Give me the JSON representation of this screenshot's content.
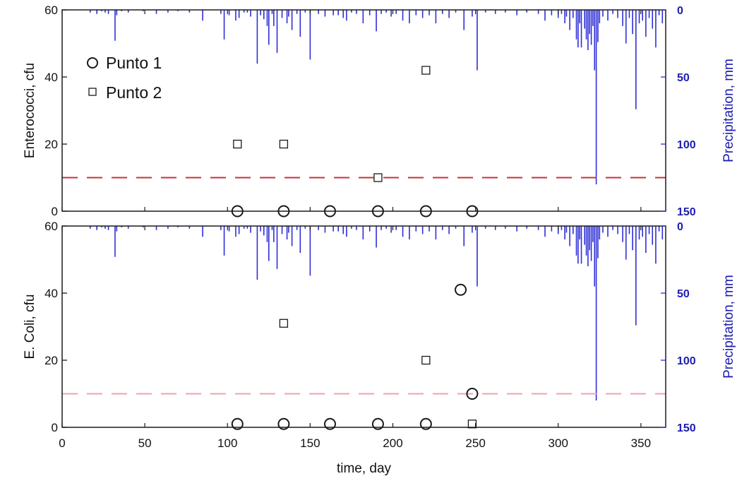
{
  "chart_data": [
    {
      "type": "scatter",
      "ylabel": "Enterococci, cfu",
      "y2label": "Precipitation, mm",
      "xlim": [
        0,
        365
      ],
      "ylim": [
        0,
        60
      ],
      "y2lim": [
        0,
        150
      ],
      "y2_inverted": true,
      "yticks": [
        0,
        20,
        40,
        60
      ],
      "y2ticks": [
        0,
        50,
        100,
        150
      ],
      "threshold": 10,
      "legend_position": "top-left",
      "series": [
        {
          "name": "Punto 1",
          "marker": "circle",
          "x": [
            106,
            134,
            162,
            191,
            220,
            248
          ],
          "y": [
            0,
            0,
            0,
            0,
            0,
            0
          ]
        },
        {
          "name": "Punto 2",
          "marker": "square",
          "x": [
            106,
            134,
            191,
            220
          ],
          "y": [
            20,
            20,
            10,
            42
          ]
        }
      ]
    },
    {
      "type": "scatter",
      "ylabel": "E. Coli, cfu",
      "y2label": "Precipitation, mm",
      "xlabel": "time, day",
      "xlim": [
        0,
        365
      ],
      "ylim": [
        0,
        60
      ],
      "y2lim": [
        0,
        150
      ],
      "y2_inverted": true,
      "xticks": [
        0,
        50,
        100,
        150,
        200,
        250,
        300,
        350
      ],
      "yticks": [
        0,
        20,
        40,
        60
      ],
      "y2ticks": [
        0,
        50,
        100,
        150
      ],
      "threshold": 10,
      "series": [
        {
          "name": "Punto 1",
          "marker": "circle",
          "x": [
            106,
            134,
            162,
            191,
            220,
            241,
            248
          ],
          "y": [
            1,
            1,
            1,
            1,
            1,
            41,
            10
          ]
        },
        {
          "name": "Punto 2",
          "marker": "square",
          "x": [
            134,
            220,
            248
          ],
          "y": [
            31,
            20,
            1
          ]
        }
      ]
    }
  ],
  "precipitation": {
    "name": "Precipitation",
    "days": [
      17,
      21,
      24,
      26,
      28,
      32,
      33,
      36,
      40,
      49,
      57,
      64,
      70,
      77,
      85,
      96,
      98,
      101,
      105,
      107,
      110,
      112,
      114,
      118,
      120,
      122,
      124,
      125,
      127,
      128,
      130,
      133,
      136,
      137,
      139,
      142,
      144,
      147,
      150,
      155,
      159,
      164,
      167,
      170,
      172,
      175,
      178,
      182,
      186,
      190,
      193,
      196,
      199,
      202,
      206,
      210,
      214,
      218,
      222,
      226,
      230,
      234,
      238,
      243,
      248,
      251,
      256,
      262,
      268,
      275,
      281,
      288,
      292,
      296,
      300,
      302,
      304,
      305,
      307,
      309,
      311,
      312,
      313,
      314,
      316,
      317,
      318,
      319,
      320,
      321,
      322,
      323,
      324,
      325,
      327,
      330,
      333,
      336,
      339,
      341,
      343,
      345,
      347,
      349,
      351,
      353,
      355,
      357,
      359,
      361,
      363
    ],
    "mm": [
      2,
      3,
      1,
      2,
      3,
      23,
      4,
      1,
      2,
      1,
      3,
      2,
      1,
      2,
      8,
      3,
      22,
      4,
      8,
      6,
      2,
      2,
      5,
      40,
      4,
      7,
      12,
      26,
      3,
      12,
      32,
      6,
      10,
      5,
      15,
      3,
      20,
      2,
      37,
      3,
      5,
      4,
      4,
      6,
      8,
      2,
      3,
      10,
      4,
      16,
      3,
      2,
      5,
      3,
      8,
      10,
      4,
      6,
      4,
      10,
      3,
      6,
      2,
      15,
      5,
      45,
      2,
      3,
      2,
      4,
      2,
      3,
      8,
      4,
      6,
      3,
      10,
      5,
      15,
      6,
      22,
      28,
      10,
      28,
      14,
      22,
      30,
      18,
      26,
      12,
      45,
      130,
      24,
      10,
      5,
      8,
      3,
      6,
      12,
      25,
      6,
      18,
      74,
      10,
      8,
      20,
      6,
      14,
      28,
      4,
      10
    ]
  },
  "colors": {
    "axis": "#1a1a1a",
    "precipitation": "#2e2ed6",
    "threshold": "#c8323a",
    "threshold_light": "#eea3aa",
    "marker_edge": "#1a1a1a",
    "y2_text": "#1c1cb0"
  }
}
